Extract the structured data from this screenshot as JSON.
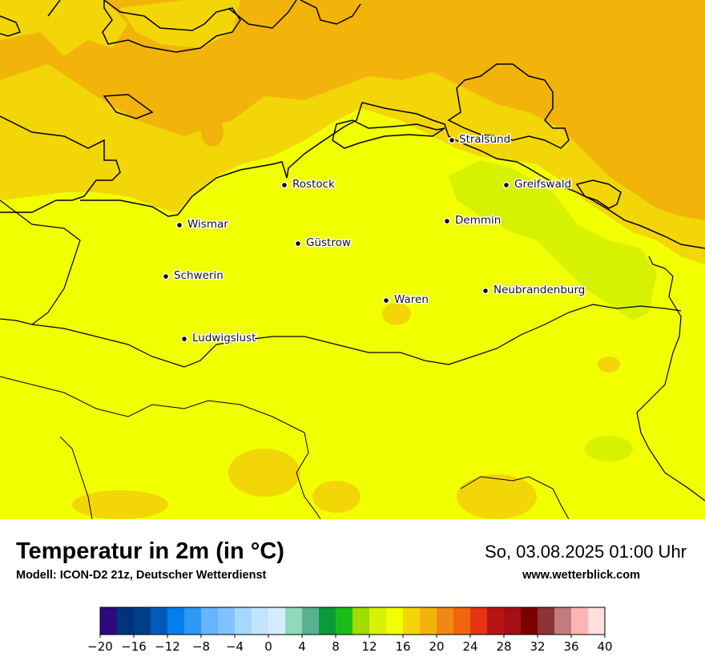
{
  "map": {
    "region": "Mecklenburg-Vorpommern",
    "colors": {
      "ocean_sea": "#f2b40a",
      "coast_band": "#f2d607",
      "inland": "#f1ff00",
      "greenish": "#d7f201",
      "patches": "#f2d607",
      "boundary": "#000000"
    },
    "cities": [
      {
        "name": "Stralsund"
      },
      {
        "name": "Rostock"
      },
      {
        "name": "Greifswald"
      },
      {
        "name": "Wismar"
      },
      {
        "name": "Demmin"
      },
      {
        "name": "Güstrow"
      },
      {
        "name": "Schwerin"
      },
      {
        "name": "Neubrandenburg"
      },
      {
        "name": "Waren"
      },
      {
        "name": "Ludwigslust"
      }
    ]
  },
  "footer": {
    "title": "Temperatur in 2m (in °C)",
    "model": "Modell: ICON-D2 21z, Deutscher Wetterdienst",
    "datetime": "So, 03.08.2025 01:00 Uhr",
    "source": "www.wetterblick.com"
  },
  "legend": {
    "unit": "°C",
    "min": -20,
    "max": 40,
    "step": 2,
    "colors": [
      "#2d0a7d",
      "#00337a",
      "#003f88",
      "#005bb8",
      "#0080ea",
      "#2d99f5",
      "#66b3ff",
      "#80c2ff",
      "#a6d7ff",
      "#c3e4ff",
      "#d7ebff",
      "#91d8bc",
      "#5ab090",
      "#0a9a3a",
      "#1abd18",
      "#a0dc00",
      "#d7f201",
      "#f1ff00",
      "#f2d607",
      "#f2b40a",
      "#f08814",
      "#f0660f",
      "#e63412",
      "#b71515",
      "#a50f14",
      "#7a0000",
      "#8c3336",
      "#c17d7d",
      "#ffb3b3",
      "#ffdede"
    ],
    "tick_labels": [
      "−20",
      "−16",
      "−12",
      "−8",
      "−4",
      "0",
      "4",
      "8",
      "12",
      "16",
      "20",
      "24",
      "28",
      "32",
      "36",
      "40"
    ]
  }
}
